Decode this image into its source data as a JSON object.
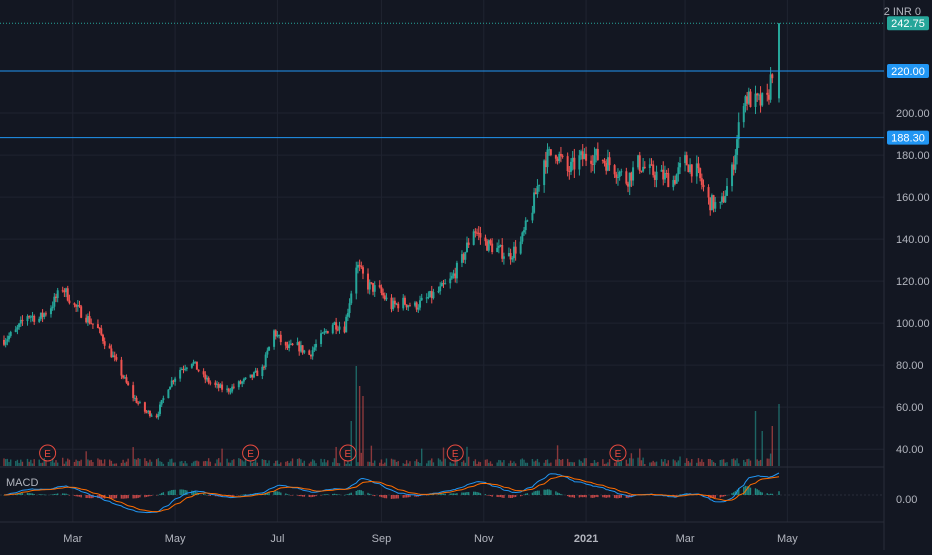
{
  "header": {
    "currency_label": "2 INR 0"
  },
  "macd": {
    "label": "MACD",
    "tick_label": "0.00"
  },
  "colors": {
    "background": "#131722",
    "grid": "#1f2330",
    "axis_text": "#b2b5be",
    "up": "#26a69a",
    "down": "#ef5350",
    "hline": "#2196f3",
    "macd_line": "#2196f3",
    "signal_line": "#ff6d00",
    "earnings": "#e84a3f"
  },
  "chart_data": {
    "type": "candlestick",
    "title": "",
    "xlabel": "",
    "ylabel": "",
    "ylim": [
      32,
      250
    ],
    "y_ticks": [
      {
        "value": 200,
        "label": "200.00"
      },
      {
        "value": 180,
        "label": "180.00"
      },
      {
        "value": 160,
        "label": "160.00"
      },
      {
        "value": 140,
        "label": "140.00"
      },
      {
        "value": 120,
        "label": "120.00"
      },
      {
        "value": 100,
        "label": "100.00"
      },
      {
        "value": 80,
        "label": "80.00"
      },
      {
        "value": 60,
        "label": "60.00"
      },
      {
        "value": 40,
        "label": "40.00"
      }
    ],
    "x_ticks": [
      {
        "date": "2020-03-01",
        "label": "Mar",
        "bold": false
      },
      {
        "date": "2020-05-01",
        "label": "May",
        "bold": false
      },
      {
        "date": "2020-07-01",
        "label": "Jul",
        "bold": false
      },
      {
        "date": "2020-09-01",
        "label": "Sep",
        "bold": false
      },
      {
        "date": "2020-11-01",
        "label": "Nov",
        "bold": false
      },
      {
        "date": "2021-01-01",
        "label": "2021",
        "bold": true
      },
      {
        "date": "2021-03-01",
        "label": "Mar",
        "bold": false
      },
      {
        "date": "2021-05-01",
        "label": "May",
        "bold": false
      }
    ],
    "date_range": [
      "2020-01-20",
      "2021-04-26"
    ],
    "horizontal_lines": [
      {
        "value": 220.0,
        "label": "220.00"
      },
      {
        "value": 188.3,
        "label": "188.30"
      }
    ],
    "last_price": {
      "value": 242.75,
      "label": "242.75"
    },
    "earnings_markers": [
      {
        "date": "2020-02-15",
        "label": "E"
      },
      {
        "date": "2020-06-15",
        "label": "E"
      },
      {
        "date": "2020-08-12",
        "label": "E"
      },
      {
        "date": "2020-10-15",
        "label": "E"
      },
      {
        "date": "2021-01-20",
        "label": "E"
      }
    ],
    "series": [
      {
        "name": "price",
        "points": [
          [
            "2020-01-20",
            92
          ],
          [
            "2020-01-27",
            96
          ],
          [
            "2020-02-03",
            104
          ],
          [
            "2020-02-10",
            102
          ],
          [
            "2020-02-17",
            108
          ],
          [
            "2020-02-24",
            117
          ],
          [
            "2020-03-02",
            108
          ],
          [
            "2020-03-09",
            103
          ],
          [
            "2020-03-16",
            97
          ],
          [
            "2020-03-23",
            87
          ],
          [
            "2020-03-30",
            76
          ],
          [
            "2020-04-06",
            65
          ],
          [
            "2020-04-13",
            58
          ],
          [
            "2020-04-20",
            56
          ],
          [
            "2020-04-27",
            70
          ],
          [
            "2020-05-04",
            78
          ],
          [
            "2020-05-11",
            82
          ],
          [
            "2020-05-18",
            74
          ],
          [
            "2020-05-25",
            70
          ],
          [
            "2020-06-01",
            68
          ],
          [
            "2020-06-08",
            71
          ],
          [
            "2020-06-15",
            74
          ],
          [
            "2020-06-22",
            78
          ],
          [
            "2020-06-29",
            96
          ],
          [
            "2020-07-06",
            88
          ],
          [
            "2020-07-13",
            89
          ],
          [
            "2020-07-20",
            85
          ],
          [
            "2020-07-27",
            93
          ],
          [
            "2020-08-03",
            100
          ],
          [
            "2020-08-10",
            98
          ],
          [
            "2020-08-17",
            128
          ],
          [
            "2020-08-24",
            118
          ],
          [
            "2020-08-31",
            115
          ],
          [
            "2020-09-07",
            108
          ],
          [
            "2020-09-14",
            110
          ],
          [
            "2020-09-21",
            108
          ],
          [
            "2020-10-05",
            115
          ],
          [
            "2020-10-12",
            120
          ],
          [
            "2020-10-19",
            130
          ],
          [
            "2020-10-26",
            145
          ],
          [
            "2020-11-02",
            138
          ],
          [
            "2020-11-09",
            135
          ],
          [
            "2020-11-16",
            132
          ],
          [
            "2020-11-23",
            138
          ],
          [
            "2020-11-30",
            155
          ],
          [
            "2020-12-07",
            178
          ],
          [
            "2020-12-14",
            182
          ],
          [
            "2020-12-21",
            172
          ],
          [
            "2020-12-28",
            178
          ],
          [
            "2021-01-04",
            180
          ],
          [
            "2021-01-11",
            178
          ],
          [
            "2021-01-18",
            174
          ],
          [
            "2021-01-25",
            168
          ],
          [
            "2021-02-01",
            176
          ],
          [
            "2021-02-08",
            172
          ],
          [
            "2021-02-15",
            170
          ],
          [
            "2021-02-22",
            168
          ],
          [
            "2021-03-01",
            177
          ],
          [
            "2021-03-08",
            172
          ],
          [
            "2021-03-15",
            158
          ],
          [
            "2021-03-22",
            155
          ],
          [
            "2021-03-29",
            172
          ],
          [
            "2021-04-05",
            208
          ],
          [
            "2021-04-12",
            205
          ],
          [
            "2021-04-19",
            205
          ],
          [
            "2021-04-26",
            242.75
          ]
        ]
      }
    ]
  }
}
